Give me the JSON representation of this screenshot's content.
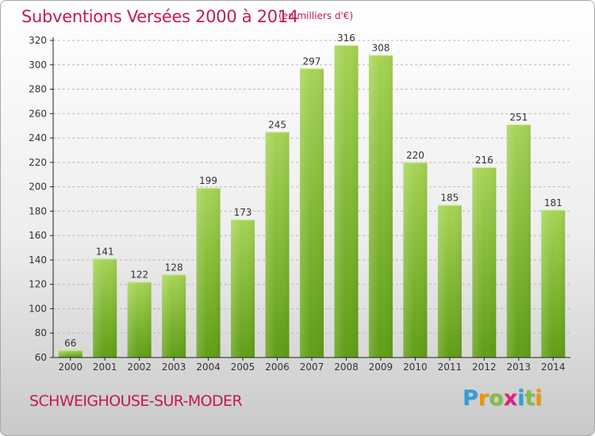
{
  "chart_data": {
    "type": "bar",
    "title": "Subventions Versées 2000 à 2014",
    "subtitle": "(en milliers d'€)",
    "categories": [
      "2000",
      "2001",
      "2002",
      "2003",
      "2004",
      "2005",
      "2006",
      "2007",
      "2008",
      "2009",
      "2010",
      "2011",
      "2012",
      "2013",
      "2014"
    ],
    "values": [
      66,
      141,
      122,
      128,
      199,
      173,
      245,
      297,
      316,
      308,
      220,
      185,
      216,
      251,
      181
    ],
    "ylim": [
      60,
      320
    ],
    "yticks": [
      60,
      80,
      100,
      120,
      140,
      160,
      180,
      200,
      220,
      240,
      260,
      280,
      300,
      320
    ],
    "xlabel": "",
    "ylabel": "",
    "grid": true
  },
  "footer": {
    "city": "SCHWEIGHOUSE-SUR-MODER",
    "logo_letters": [
      "P",
      "r",
      "o",
      "x",
      "i",
      "t",
      "i"
    ],
    "logo_colors": [
      "#2f9fd8",
      "#f29400",
      "#7fbf3f",
      "#e41f7b",
      "#2f9fd8",
      "#7fbf3f",
      "#f29400"
    ]
  },
  "colors": {
    "title": "#c2185b",
    "bar_light": "#a6d456",
    "bar_dark": "#5f9e15",
    "grid": "#b8b8b8",
    "axis": "#222222"
  }
}
